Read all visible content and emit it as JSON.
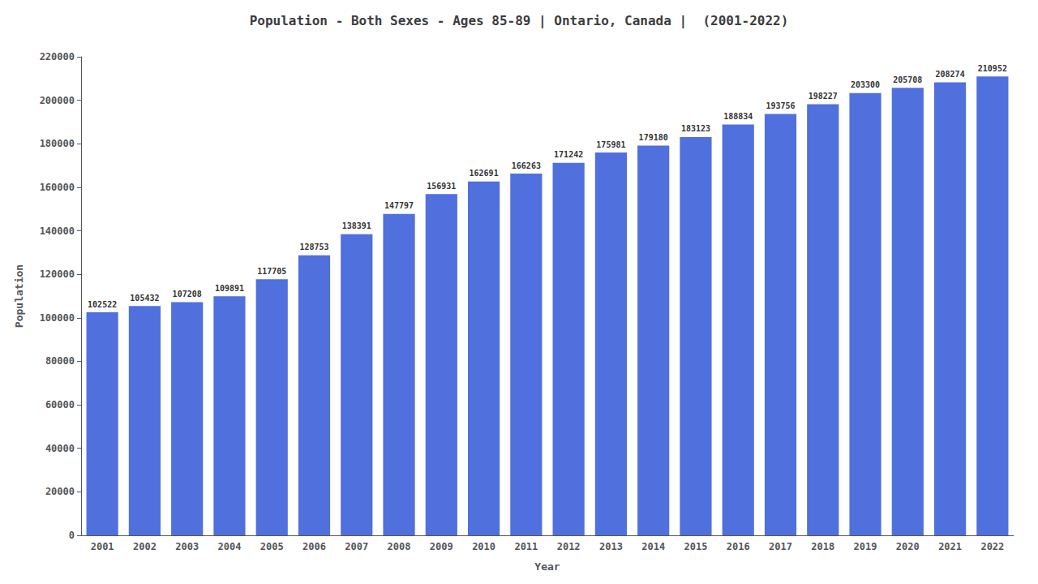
{
  "chart_data": {
    "type": "bar",
    "title": "Population - Both Sexes - Ages 85-89 | Ontario, Canada |  (2001-2022)",
    "xlabel": "Year",
    "ylabel": "Population",
    "categories": [
      "2001",
      "2002",
      "2003",
      "2004",
      "2005",
      "2006",
      "2007",
      "2008",
      "2009",
      "2010",
      "2011",
      "2012",
      "2013",
      "2014",
      "2015",
      "2016",
      "2017",
      "2018",
      "2019",
      "2020",
      "2021",
      "2022"
    ],
    "values": [
      102522,
      105432,
      107208,
      109891,
      117705,
      128753,
      138391,
      147797,
      156931,
      162691,
      166263,
      171242,
      175981,
      179180,
      183123,
      188834,
      193756,
      198227,
      203300,
      205708,
      208274,
      210952
    ],
    "ylim": [
      0,
      220000
    ],
    "yticks": [
      0,
      20000,
      40000,
      60000,
      80000,
      100000,
      120000,
      140000,
      160000,
      180000,
      200000,
      220000
    ],
    "grid": false,
    "data_labels": true
  }
}
